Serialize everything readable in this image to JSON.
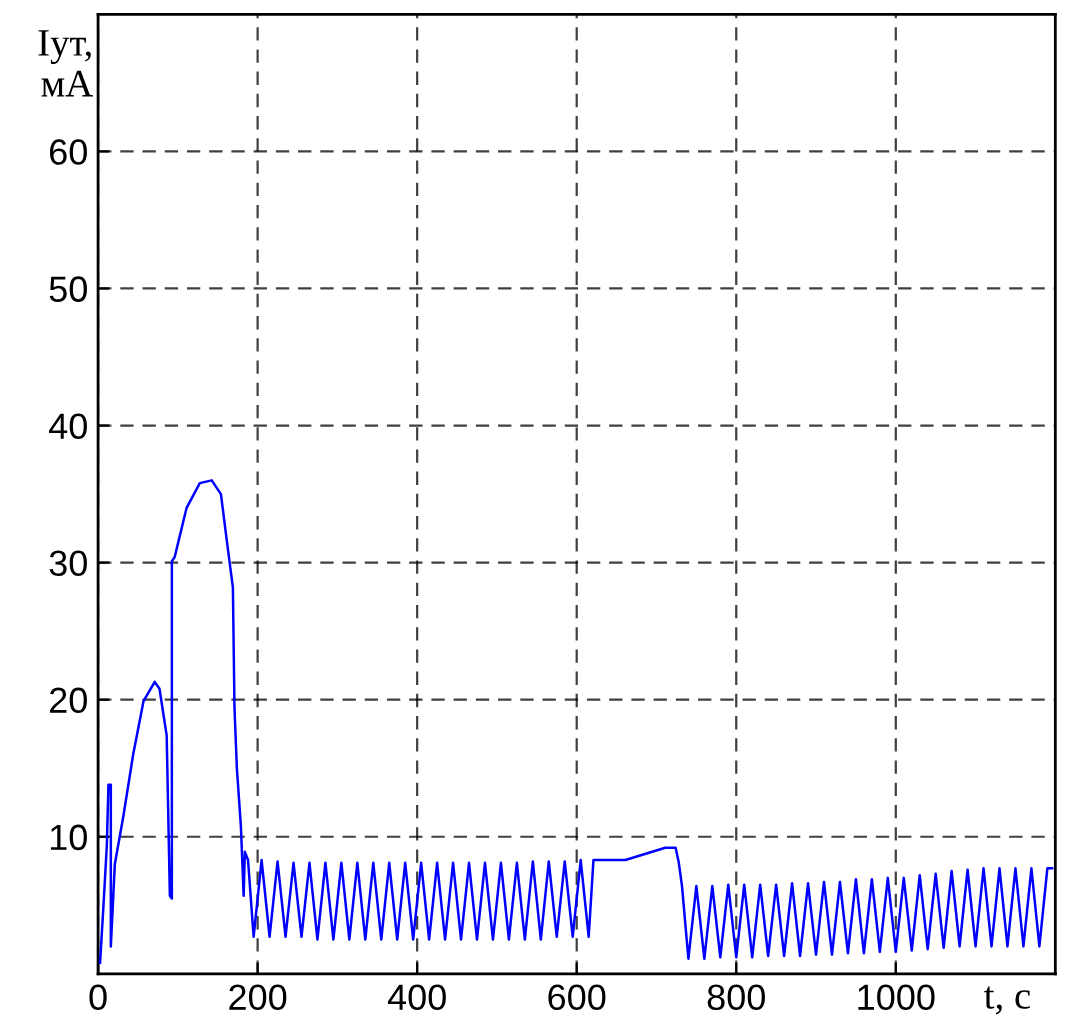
{
  "chart_data": {
    "type": "line",
    "xlabel": "t, c",
    "ylabel": "Iут,\nмА",
    "xlim": [
      0,
      1200
    ],
    "ylim": [
      0,
      70
    ],
    "xticks": [
      0,
      200,
      400,
      600,
      800,
      1000
    ],
    "yticks": [
      10,
      20,
      30,
      40,
      50,
      60
    ],
    "grid": true,
    "marker": "none",
    "line_style": "solid",
    "series": [
      {
        "color": "#0000ff",
        "x": [
          2.5,
          7,
          11,
          13,
          16,
          16,
          21,
          32,
          44,
          57,
          71,
          77,
          86,
          90,
          92.5,
          92.5,
          96,
          111,
          127.5,
          142.5,
          154,
          162.5,
          169,
          171,
          174,
          179,
          182.5,
          184,
          188,
          195,
          205,
          215,
          225,
          235,
          245,
          255,
          265,
          275,
          285,
          295,
          305,
          315,
          325,
          335,
          345,
          355,
          365,
          375,
          385,
          395,
          405,
          415,
          425,
          435,
          445,
          455,
          465,
          475,
          485,
          495,
          505,
          515,
          525,
          535,
          545,
          555,
          565,
          575,
          585,
          595,
          605,
          615,
          621,
          661,
          711,
          724,
          728,
          732,
          740,
          750,
          760,
          770,
          780,
          790,
          800,
          810,
          820,
          830,
          840,
          850,
          860,
          870,
          880,
          890,
          900,
          910,
          920,
          930,
          940,
          950,
          960,
          970,
          980,
          990,
          1000,
          1010,
          1020,
          1030,
          1040,
          1050,
          1060,
          1070,
          1080,
          1090,
          1100,
          1110,
          1120,
          1130,
          1140,
          1150,
          1160,
          1170,
          1180,
          1190,
          1196
        ],
        "values": [
          0.8,
          5.2,
          9.4,
          13.8,
          13.8,
          2,
          8,
          11.6,
          16,
          19.9,
          21.3,
          20.8,
          17.4,
          5.7,
          5.5,
          30.1,
          30.4,
          34,
          35.8,
          36,
          35,
          31.1,
          28.2,
          19.4,
          15,
          10.8,
          5.7,
          8.9,
          8.3,
          2.7,
          8.3,
          2.7,
          8.2,
          2.7,
          8.1,
          2.7,
          8.1,
          2.5,
          8.1,
          2.5,
          8.1,
          2.5,
          8.1,
          2.5,
          8.1,
          2.5,
          8.1,
          2.5,
          8.1,
          2.5,
          8.1,
          2.5,
          8.1,
          2.5,
          8.1,
          2.5,
          8.1,
          2.5,
          8.1,
          2.5,
          8.1,
          2.5,
          8.1,
          2.5,
          8.2,
          2.5,
          8.2,
          2.7,
          8.2,
          2.7,
          8.3,
          2.7,
          8.3,
          8.3,
          9.2,
          9.2,
          8.1,
          6.4,
          1.1,
          6.4,
          1.1,
          6.4,
          1.2,
          6.5,
          1.2,
          6.5,
          1.2,
          6.5,
          1.3,
          6.5,
          1.3,
          6.6,
          1.3,
          6.6,
          1.4,
          6.7,
          1.4,
          6.7,
          1.5,
          6.9,
          1.5,
          6.9,
          1.6,
          7.0,
          1.6,
          7.0,
          1.7,
          7.2,
          1.8,
          7.3,
          1.9,
          7.5,
          2.0,
          7.6,
          2.0,
          7.7,
          2.0,
          7.7,
          2.0,
          7.7,
          2.0,
          7.7,
          2.0,
          7.7,
          7.7
        ]
      }
    ]
  }
}
